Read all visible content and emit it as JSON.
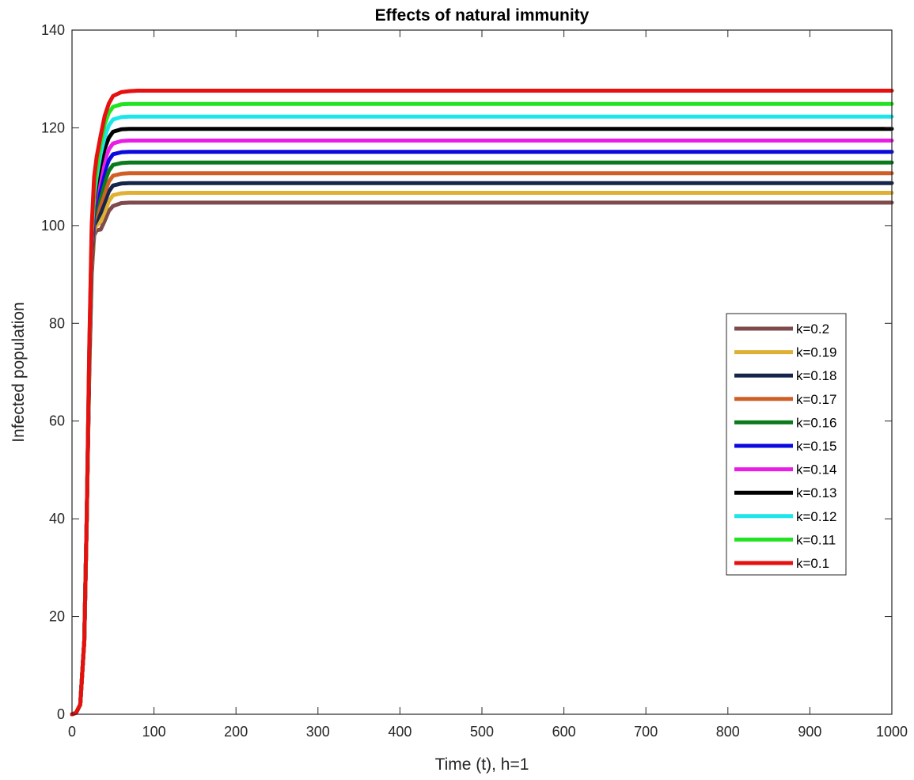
{
  "chart_data": {
    "type": "line",
    "title": "Effects of natural immunity",
    "xlabel": "Time (t), h=1",
    "ylabel": "Infected population",
    "xlim": [
      0,
      1000
    ],
    "ylim": [
      0,
      140
    ],
    "xticks": [
      0,
      100,
      200,
      300,
      400,
      500,
      600,
      700,
      800,
      900,
      1000
    ],
    "yticks": [
      0,
      20,
      40,
      60,
      80,
      100,
      120,
      140
    ],
    "grid": false,
    "legend_position": "right",
    "x": [
      0,
      5,
      10,
      15,
      18,
      21,
      24,
      27,
      30,
      35,
      40,
      45,
      50,
      60,
      70,
      80,
      100,
      150,
      200,
      400,
      600,
      800,
      1000
    ],
    "series": [
      {
        "name": "k=0.2",
        "color": "#7e4a4b",
        "values": [
          0,
          0.3,
          2,
          15,
          40,
          70,
          90,
          98,
          99,
          99.2,
          101,
          103,
          104,
          104.6,
          104.7,
          104.7,
          104.7,
          104.7,
          104.7,
          104.7,
          104.7,
          104.7,
          104.7
        ]
      },
      {
        "name": "k=0.19",
        "color": "#e0b034",
        "values": [
          0,
          0.3,
          2,
          15,
          40,
          70,
          91,
          99,
          100,
          100.8,
          102.8,
          105,
          106.2,
          106.6,
          106.7,
          106.7,
          106.7,
          106.7,
          106.7,
          106.7,
          106.7,
          106.7,
          106.7
        ]
      },
      {
        "name": "k=0.18",
        "color": "#16264a",
        "values": [
          0,
          0.3,
          2,
          15,
          40,
          71,
          92,
          100,
          101,
          102.6,
          104.8,
          107,
          108.2,
          108.6,
          108.7,
          108.7,
          108.7,
          108.7,
          108.7,
          108.7,
          108.7,
          108.7,
          108.7
        ]
      },
      {
        "name": "k=0.17",
        "color": "#d05f26",
        "values": [
          0,
          0.3,
          2,
          15,
          40,
          71,
          93,
          101,
          102.5,
          104.6,
          106.8,
          109,
          110.2,
          110.6,
          110.7,
          110.7,
          110.7,
          110.7,
          110.7,
          110.7,
          110.7,
          110.7,
          110.7
        ]
      },
      {
        "name": "k=0.16",
        "color": "#0a7a1a",
        "values": [
          0,
          0.3,
          2,
          15,
          40,
          72,
          94,
          102,
          104,
          106.5,
          109,
          111.2,
          112.4,
          112.8,
          112.9,
          112.9,
          112.9,
          112.9,
          112.9,
          112.9,
          112.9,
          112.9,
          112.9
        ]
      },
      {
        "name": "k=0.15",
        "color": "#0a0adf",
        "values": [
          0,
          0.3,
          2,
          15,
          40,
          72,
          95,
          103,
          105.5,
          108.5,
          111.2,
          113.4,
          114.6,
          115,
          115.1,
          115.1,
          115.1,
          115.1,
          115.1,
          115.1,
          115.1,
          115.1,
          115.1
        ]
      },
      {
        "name": "k=0.14",
        "color": "#e91ee6",
        "values": [
          0,
          0.3,
          2,
          15,
          40,
          73,
          96,
          104,
          107,
          110.5,
          113.4,
          115.6,
          116.8,
          117.3,
          117.4,
          117.4,
          117.4,
          117.4,
          117.4,
          117.4,
          117.4,
          117.4,
          117.4
        ]
      },
      {
        "name": "k=0.13",
        "color": "#000000",
        "values": [
          0,
          0.3,
          2,
          15,
          40,
          73,
          97,
          105,
          108.5,
          112.6,
          115.8,
          118,
          119.2,
          119.7,
          119.8,
          119.8,
          119.8,
          119.8,
          119.8,
          119.8,
          119.8,
          119.8,
          119.8
        ]
      },
      {
        "name": "k=0.12",
        "color": "#1be6ec",
        "values": [
          0,
          0.3,
          2,
          15,
          40,
          74,
          98,
          106,
          110,
          114.8,
          118.2,
          120.5,
          121.7,
          122.2,
          122.3,
          122.3,
          122.3,
          122.3,
          122.3,
          122.3,
          122.3,
          122.3,
          122.3
        ]
      },
      {
        "name": "k=0.11",
        "color": "#22e322",
        "values": [
          0,
          0.3,
          2,
          15,
          40,
          74,
          99,
          107,
          111.5,
          117,
          120.8,
          123.1,
          124.3,
          124.8,
          124.9,
          124.9,
          124.9,
          124.9,
          124.9,
          124.9,
          124.9,
          124.9,
          124.9
        ]
      },
      {
        "name": "k=0.1",
        "color": "#e80f0f",
        "values": [
          0,
          0.3,
          2,
          15,
          40,
          75,
          100,
          110,
          114,
          118.5,
          122.5,
          125,
          126.5,
          127.3,
          127.5,
          127.6,
          127.6,
          127.6,
          127.6,
          127.6,
          127.6,
          127.6,
          127.6
        ]
      }
    ]
  }
}
